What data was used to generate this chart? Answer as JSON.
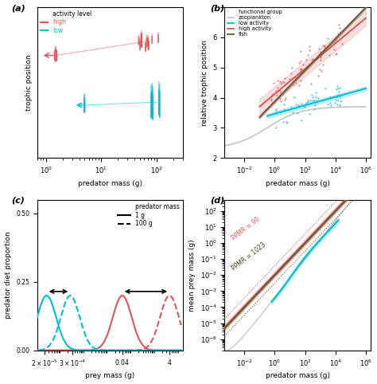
{
  "panel_a": {
    "title": "(a)",
    "xlabel": "predator mass (g)",
    "ylabel": "trophic position",
    "high_color": "#e05555",
    "low_color": "#00bcd4",
    "xlim": [
      0.7,
      300
    ],
    "ylim": [
      0.05,
      1.05
    ]
  },
  "panel_b": {
    "title": "(b)",
    "xlabel": "predator mass (g)",
    "ylabel": "relative trophic position",
    "high_color": "#e05555",
    "low_color": "#00bcd4",
    "fish_color": "#6b5a32",
    "zoo_color": "#c8c8c8",
    "ylim": [
      2,
      7
    ],
    "xlim_log": [
      0.0005,
      2000000.0
    ]
  },
  "panel_c": {
    "title": "(c)",
    "xlabel": "prey mass (g)",
    "ylabel": "predator diet proportion",
    "high_color": "#e05555",
    "low_color": "#00bcd4",
    "ylim": [
      0,
      0.55
    ],
    "xlim": [
      1e-05,
      15
    ]
  },
  "panel_d": {
    "title": "(d)",
    "xlabel": "predator mass (g)",
    "ylabel": "mean prey mass (g)",
    "ppmr_high": 90,
    "ppmr_low": 1023,
    "high_color": "#e05555",
    "low_color": "#00bcd4",
    "fish_color": "#6b5a32",
    "xlim": [
      0.0005,
      2000000.0
    ],
    "ylim": [
      2e-07,
      500
    ]
  },
  "colors": {
    "high": "#e05555",
    "low": "#00bcd4",
    "fish": "#6b5a32",
    "zoo": "#c8c8c8"
  }
}
